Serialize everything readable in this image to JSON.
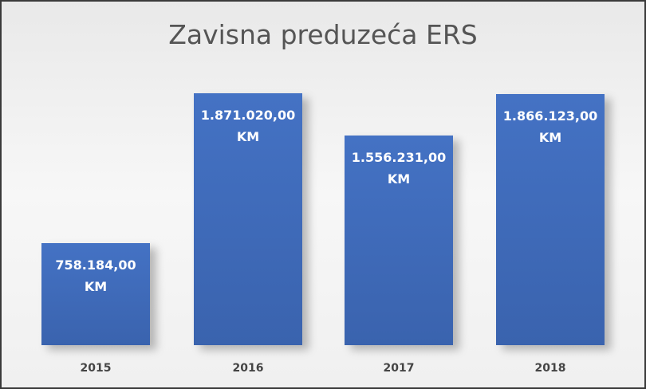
{
  "chart_data": {
    "type": "bar",
    "title": "Zavisna preduzeća ERS",
    "categories": [
      "2015",
      "2016",
      "2017",
      "2018"
    ],
    "values": [
      758184.0,
      1871020.0,
      1556231.0,
      1866123.0
    ],
    "value_labels": [
      "758.184,00 KM",
      "1.871.020,00 KM",
      "1.556.231,00 KM",
      "1.866.123,00 KM"
    ],
    "color": "#4472c4"
  }
}
